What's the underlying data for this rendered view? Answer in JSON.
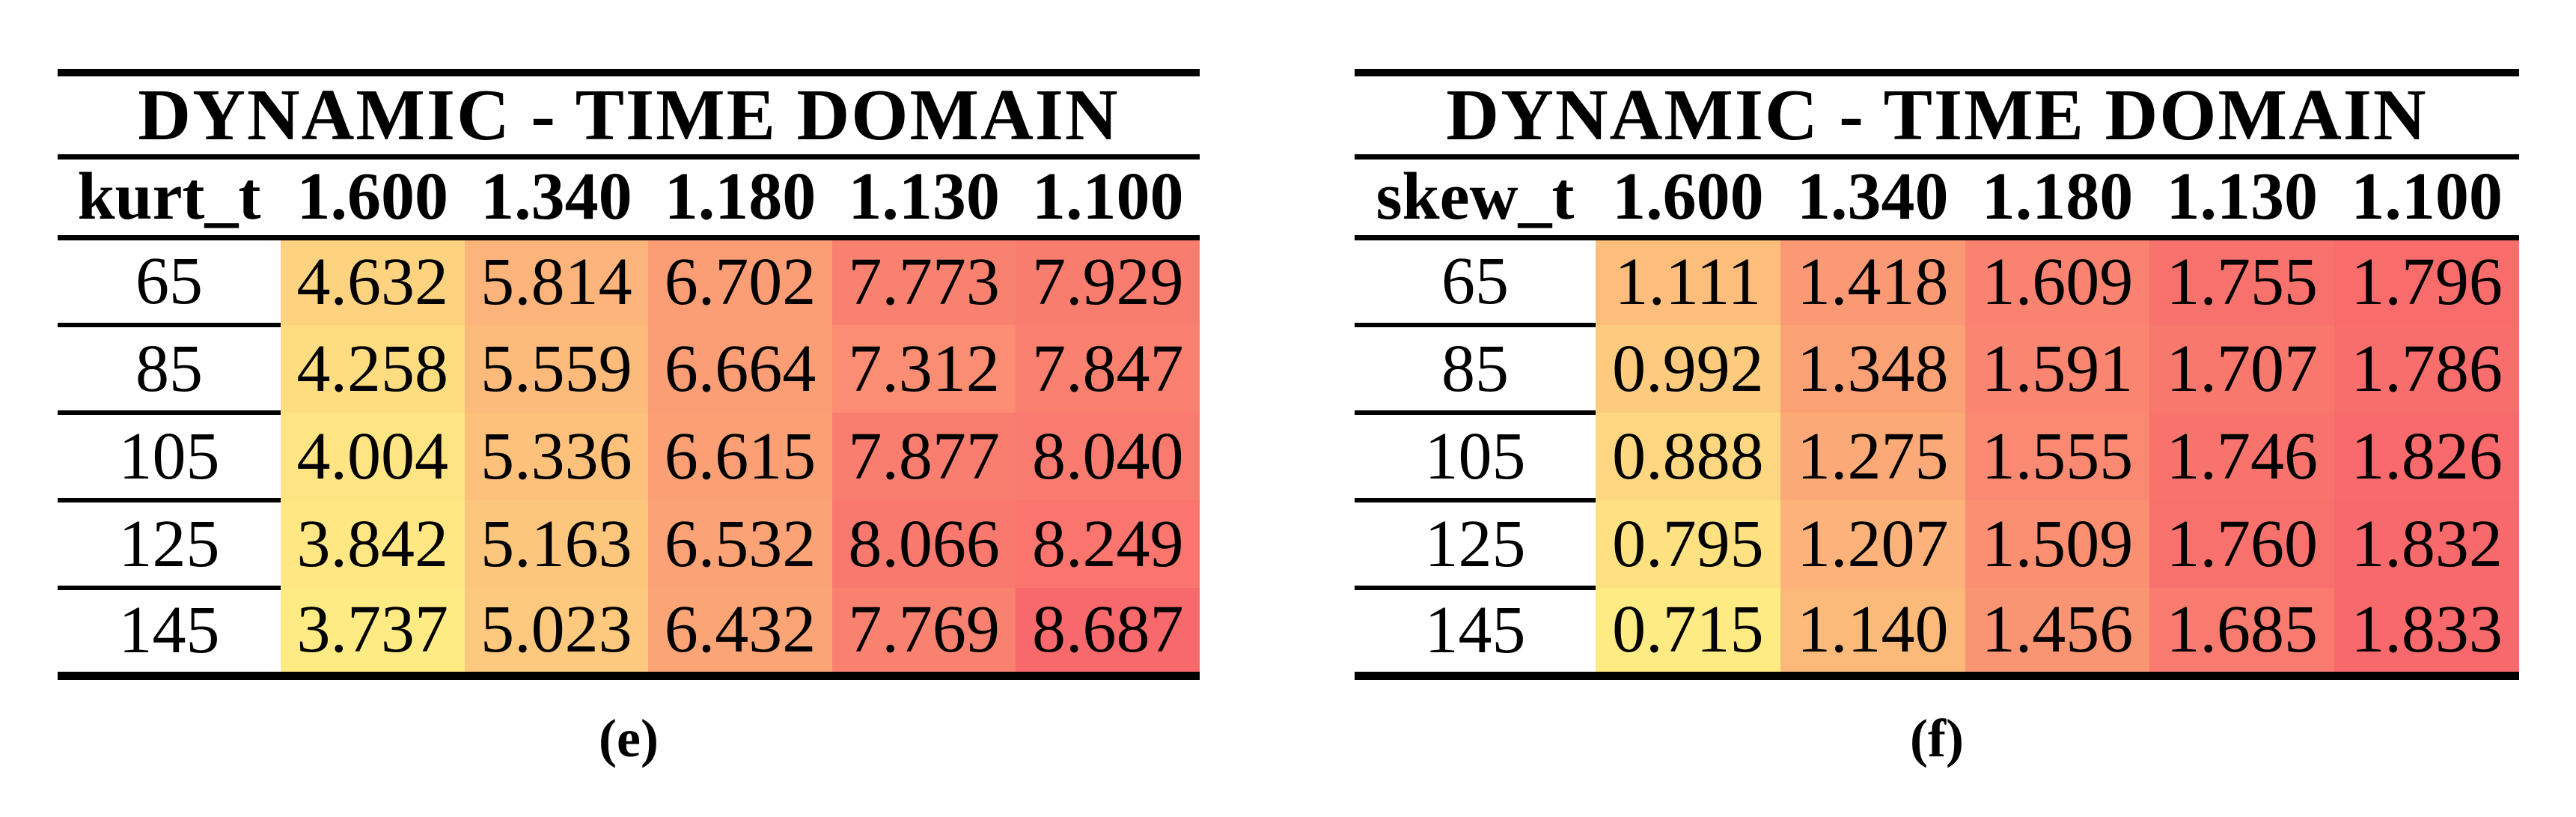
{
  "figure": {
    "background_color": "#FFFFFF",
    "text_color": "#000000",
    "rule_color": "#000000"
  },
  "chart_data": [
    {
      "type": "heatmap",
      "title": "DYNAMIC - TIME DOMAIN",
      "corner_label": "kurt_t",
      "col_headers": [
        "1.600",
        "1.340",
        "1.180",
        "1.130",
        "1.100"
      ],
      "row_headers": [
        "65",
        "85",
        "105",
        "125",
        "145"
      ],
      "values": [
        [
          4.632,
          5.814,
          6.702,
          7.773,
          7.929
        ],
        [
          4.258,
          5.559,
          6.664,
          7.312,
          7.847
        ],
        [
          4.004,
          5.336,
          6.615,
          7.877,
          8.04
        ],
        [
          3.842,
          5.163,
          6.532,
          8.066,
          8.249
        ],
        [
          3.737,
          5.023,
          6.432,
          7.769,
          8.687
        ]
      ],
      "decimals": 3,
      "value_range": [
        3.737,
        8.687
      ],
      "color_scale": {
        "low": "#FFEB84",
        "high": "#F8696B",
        "mapping": "linear low=table min, high=table max"
      },
      "caption": "(e)"
    },
    {
      "type": "heatmap",
      "title": "DYNAMIC - TIME DOMAIN",
      "corner_label": "skew_t",
      "col_headers": [
        "1.600",
        "1.340",
        "1.180",
        "1.130",
        "1.100"
      ],
      "row_headers": [
        "65",
        "85",
        "105",
        "125",
        "145"
      ],
      "values": [
        [
          1.111,
          1.418,
          1.609,
          1.755,
          1.796
        ],
        [
          0.992,
          1.348,
          1.591,
          1.707,
          1.786
        ],
        [
          0.888,
          1.275,
          1.555,
          1.746,
          1.826
        ],
        [
          0.795,
          1.207,
          1.509,
          1.76,
          1.832
        ],
        [
          0.715,
          1.14,
          1.456,
          1.685,
          1.833
        ]
      ],
      "decimals": 3,
      "value_range": [
        0.715,
        1.833
      ],
      "color_scale": {
        "low": "#FFEB84",
        "high": "#F8696B",
        "mapping": "linear low=table min, high=table max"
      },
      "caption": "(f)"
    }
  ]
}
